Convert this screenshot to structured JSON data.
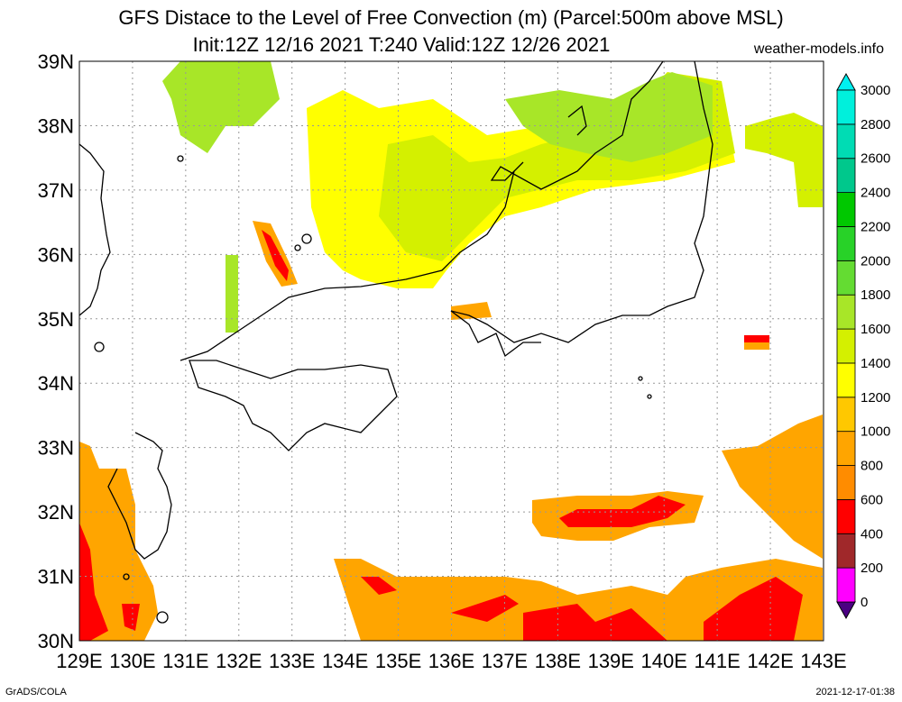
{
  "title_line1": "GFS Distace to the Level of Free Convection (m) (Parcel:500m above MSL)",
  "title_line2": "Init:12Z 12/16 2021 T:240 Valid:12Z 12/26 2021",
  "site": "weather-models.info",
  "footer_left": "GrADS/COLA",
  "footer_right": "2021-12-17-01:38",
  "lat_labels": [
    "39N",
    "38N",
    "37N",
    "36N",
    "35N",
    "34N",
    "33N",
    "32N",
    "31N",
    "30N"
  ],
  "lon_labels": [
    "129E",
    "130E",
    "131E",
    "132E",
    "133E",
    "134E",
    "135E",
    "136E",
    "137E",
    "138E",
    "139E",
    "140E",
    "141E",
    "142E",
    "143E"
  ],
  "legend": {
    "levels": [
      "0",
      "200",
      "400",
      "600",
      "800",
      "1000",
      "1200",
      "1400",
      "1600",
      "1800",
      "2000",
      "2200",
      "2400",
      "2600",
      "2800",
      "3000"
    ],
    "colors": [
      "#4b0082",
      "#ff00ff",
      "#a0282a",
      "#ff0000",
      "#ff8c00",
      "#ffa500",
      "#ffc800",
      "#ffff00",
      "#d4f000",
      "#a8e628",
      "#64dc32",
      "#28d228",
      "#00c800",
      "#00c88c",
      "#00dcb4",
      "#00f0dc",
      "#00f0f0"
    ]
  },
  "colors": {
    "red": "#ff0000",
    "orange": "#ffa500",
    "yellow": "#ffff00",
    "lime": "#a8e628",
    "green": "#64dc32"
  }
}
